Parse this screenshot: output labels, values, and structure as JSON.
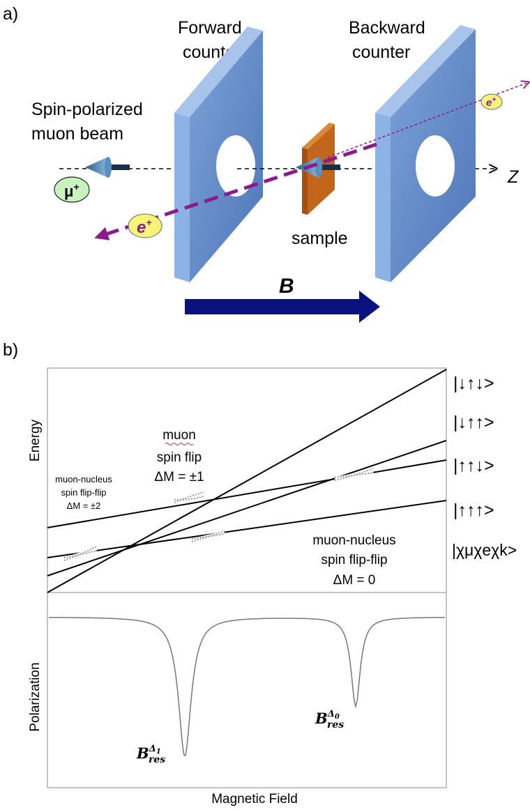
{
  "panel_a": {
    "label": "a)",
    "forward_counter": [
      "Forward",
      "counter"
    ],
    "backward_counter": [
      "Backward",
      "counter"
    ],
    "beam_label": [
      "Spin-polarized",
      "muon beam"
    ],
    "muon": {
      "base": "μ",
      "sup": "+"
    },
    "positron": {
      "base": "e",
      "sup": "+"
    },
    "axis_label": "Z",
    "sample_label": "sample",
    "field_label": "B"
  },
  "panel_b": {
    "label": "b)",
    "energy_axis": "Energy",
    "muon_flip": [
      "muon",
      "spin flip",
      "ΔM = ±1"
    ],
    "flip_flip_2": [
      "muon-nucleus",
      "spin flip-flip",
      "ΔM = ±2"
    ],
    "flip_flip_0": [
      "muon-nucleus",
      "spin flip-flip",
      "ΔM = 0"
    ],
    "states": [
      "|↓↑↓>",
      "|↓↑↑>",
      "|↑↑↓>",
      "|↑↑↑>",
      "|χμχeχk>"
    ],
    "polarization_axis": "Polarization",
    "field_axis": "Magnetic Field",
    "resonances": [
      {
        "base": "B",
        "sub": "res",
        "sup": "Δ",
        "sup_sub": "1"
      },
      {
        "base": "B",
        "sub": "res",
        "sup": "Δ",
        "sup_sub": "0"
      }
    ]
  }
}
